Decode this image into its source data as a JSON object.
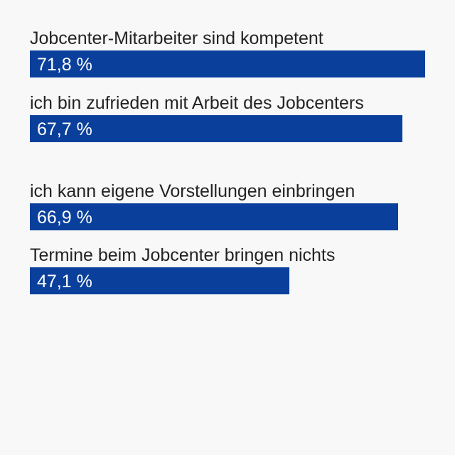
{
  "chart_data": {
    "type": "bar",
    "orientation": "horizontal",
    "categories": [
      "Jobcenter-Mitarbeiter sind kompetent",
      "ich bin zufrieden mit Arbeit des Jobcenters",
      "ich kann eigene Vorstellungen einbringen",
      "Termine beim Jobcenter bringen nichts"
    ],
    "values": [
      71.8,
      67.7,
      66.9,
      47.1
    ],
    "value_labels": [
      "71,8 %",
      "67,7 %",
      "66,9 %",
      "47,1 %"
    ],
    "xlim": [
      0,
      71.8
    ],
    "bar_color": "#0a409c",
    "grid": false
  }
}
